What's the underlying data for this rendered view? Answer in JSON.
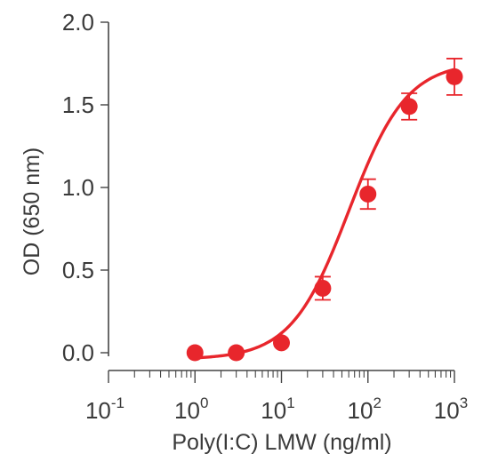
{
  "chart_data": {
    "type": "scatter",
    "xlabel": "Poly(I:C) LMW (ng/ml)",
    "ylabel": "OD (650 nm)",
    "xscale": "log",
    "xlim": [
      0.1,
      1000
    ],
    "ylim": [
      0,
      2
    ],
    "x_ticks": [
      {
        "value": 0.1,
        "base": "10",
        "exp": "-1"
      },
      {
        "value": 1,
        "base": "10",
        "exp": "0"
      },
      {
        "value": 10,
        "base": "10",
        "exp": "1"
      },
      {
        "value": 100,
        "base": "10",
        "exp": "2"
      },
      {
        "value": 1000,
        "base": "10",
        "exp": "3"
      }
    ],
    "y_ticks": [
      "0.0",
      "0.5",
      "1.0",
      "1.5",
      "2.0"
    ],
    "grid": false,
    "series": [
      {
        "color": "#e8262c",
        "x": [
          1,
          3,
          10,
          30,
          100,
          300,
          1000
        ],
        "y": [
          0.0,
          0.0,
          0.06,
          0.39,
          0.96,
          1.49,
          1.67
        ],
        "error": [
          0.0,
          0.0,
          0.0,
          0.07,
          0.09,
          0.08,
          0.11
        ],
        "fit": "sigmoid"
      }
    ]
  }
}
